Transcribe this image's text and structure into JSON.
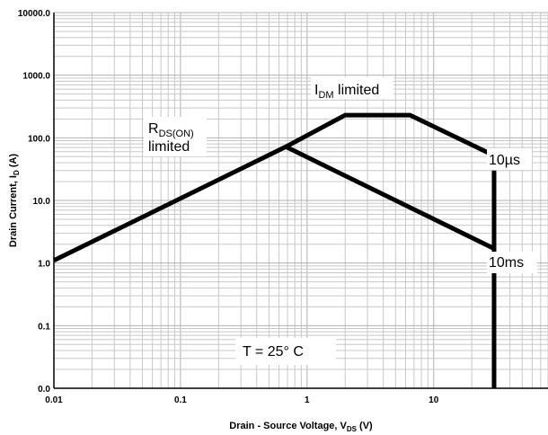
{
  "chart_data": {
    "type": "line",
    "title": "",
    "xlabel": {
      "prefix": "Drain - Source Voltage, V",
      "sub": "DS",
      "suffix": " (V)"
    },
    "ylabel": {
      "prefix": "Drain Current, I",
      "sub": "D",
      "suffix": " (A)"
    },
    "x_scale": "log",
    "y_scale": "log",
    "xlim": [
      0.01,
      80
    ],
    "ylim": [
      0.01,
      10000
    ],
    "grid": true,
    "legend": "none",
    "colors": {
      "line": "#000000",
      "grid_major": "#b0b0b0",
      "grid_minor": "#c8c8c8",
      "axis": "#000000",
      "background": "#ffffff"
    },
    "x_ticks": [
      {
        "value": 0.01,
        "label": "0.01"
      },
      {
        "value": 0.1,
        "label": "0.1"
      },
      {
        "value": 1,
        "label": "1"
      },
      {
        "value": 10,
        "label": "10"
      }
    ],
    "y_ticks": [
      {
        "value": 0.01,
        "label": "0.0"
      },
      {
        "value": 0.1,
        "label": "0.1"
      },
      {
        "value": 1,
        "label": "1.0"
      },
      {
        "value": 10,
        "label": "10.0"
      },
      {
        "value": 100,
        "label": "100.0"
      },
      {
        "value": 1000,
        "label": "1000.0"
      },
      {
        "value": 10000,
        "label": "10000.0"
      }
    ],
    "series": [
      {
        "name": "10µs",
        "x": [
          0.01,
          0.68,
          2.0,
          6.5,
          30
        ],
        "y": [
          1.1,
          72,
          230,
          230,
          52
        ]
      },
      {
        "name": "10ms",
        "x": [
          0.68,
          30
        ],
        "y": [
          72,
          1.7
        ]
      }
    ],
    "vertical_limit": {
      "x": 30,
      "y_from": 30,
      "y_to": 0.01
    },
    "annotations": {
      "rds_main": "R",
      "rds_sub": "DS(ON)",
      "rds_line2": "limited",
      "idm_main": "I",
      "idm_sub": "DM",
      "idm_rest": " limited",
      "label_10us": "10µs",
      "label_10ms": "10ms",
      "temperature": "T = 25° C"
    }
  }
}
